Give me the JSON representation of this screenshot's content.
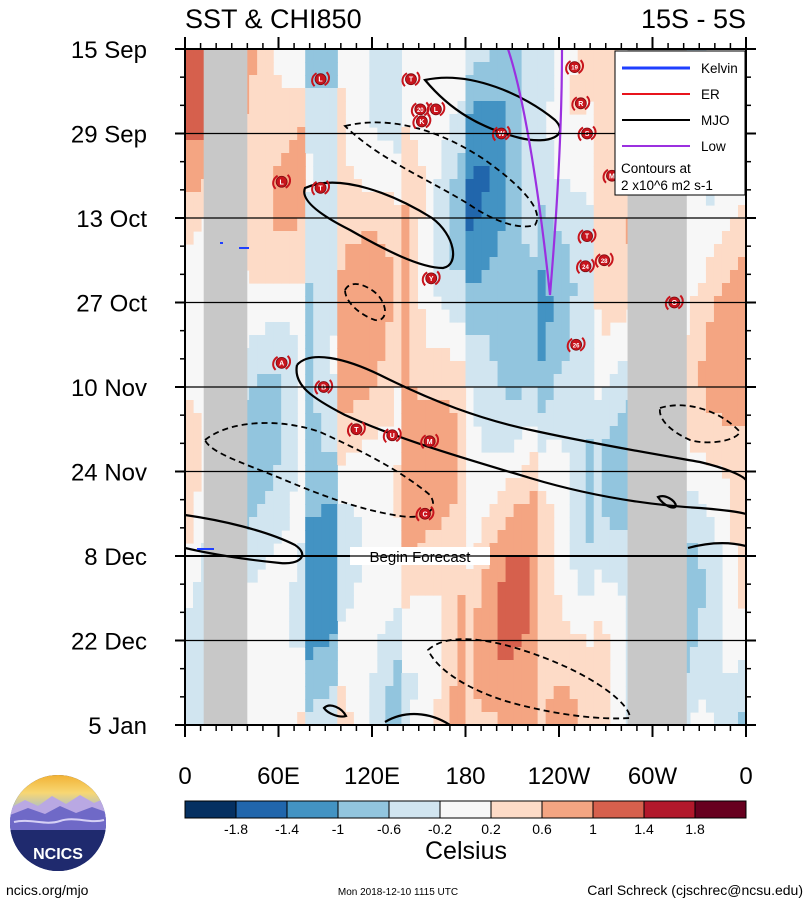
{
  "chart_data": {
    "type": "heatmap",
    "title_left": "SST & CHI850",
    "title_right": "15S - 5S",
    "y_tick_labels": [
      "15 Sep",
      "29 Sep",
      "13 Oct",
      "27 Oct",
      "10 Nov",
      "24 Nov",
      "8 Dec",
      "22 Dec",
      "5 Jan"
    ],
    "x_tick_labels": [
      "0",
      "60E",
      "120E",
      "180",
      "120W",
      "60W",
      "0"
    ],
    "xlim": [
      0,
      360
    ],
    "ylim": [
      "2018-09-15",
      "2019-01-05"
    ],
    "forecast_label": "Begin Forecast",
    "forecast_start": "2018-12-08",
    "colorbar": {
      "label": "Celsius",
      "ticks": [
        "-1.8",
        "-1.4",
        "-1",
        "-0.6",
        "-0.2",
        "0.2",
        "0.6",
        "1",
        "1.4",
        "1.8"
      ],
      "colors": [
        "#053061",
        "#2166ac",
        "#4393c3",
        "#92c5de",
        "#d1e5f0",
        "#f7f7f7",
        "#fddbc7",
        "#f4a582",
        "#d6604d",
        "#b2182b",
        "#67001f"
      ]
    },
    "legend": {
      "position": "top-right",
      "entries": [
        {
          "name": "Kelvin",
          "color": "#1f3fff"
        },
        {
          "name": "ER",
          "color": "#e8141c"
        },
        {
          "name": "MJO",
          "color": "#000000"
        },
        {
          "name": "Low",
          "color": "#9b30e0"
        }
      ],
      "note_line1": "Contours at",
      "note_line2": "2 x10^6 m2 s-1"
    },
    "land_masks_longitude": [
      [
        12,
        40
      ],
      [
        284,
        322
      ]
    ],
    "storm_markers": [
      {
        "label": "L",
        "lon": 87,
        "date": "2018-09-20"
      },
      {
        "label": "T",
        "lon": 145,
        "date": "2018-09-20"
      },
      {
        "label": "19",
        "lon": 250,
        "date": "2018-09-18"
      },
      {
        "label": "20",
        "lon": 151,
        "date": "2018-09-25"
      },
      {
        "label": "L",
        "lon": 161,
        "date": "2018-09-25"
      },
      {
        "label": "K",
        "lon": 152,
        "date": "2018-09-27"
      },
      {
        "label": "R",
        "lon": 254,
        "date": "2018-09-24"
      },
      {
        "label": "S",
        "lon": 258,
        "date": "2018-09-29"
      },
      {
        "label": "W",
        "lon": 203,
        "date": "2018-09-29"
      },
      {
        "label": "M",
        "lon": 274,
        "date": "2018-10-06"
      },
      {
        "label": "L",
        "lon": 62,
        "date": "2018-10-07"
      },
      {
        "label": "T",
        "lon": 87,
        "date": "2018-10-08"
      },
      {
        "label": "T",
        "lon": 258,
        "date": "2018-10-16"
      },
      {
        "label": "24",
        "lon": 257,
        "date": "2018-10-21"
      },
      {
        "label": "28",
        "lon": 269,
        "date": "2018-10-20"
      },
      {
        "label": "Y",
        "lon": 158,
        "date": "2018-10-23"
      },
      {
        "label": "O",
        "lon": 314,
        "date": "2018-10-27"
      },
      {
        "label": "26",
        "lon": 251,
        "date": "2018-11-03"
      },
      {
        "label": "A",
        "lon": 62,
        "date": "2018-11-06"
      },
      {
        "label": "B",
        "lon": 89,
        "date": "2018-11-10"
      },
      {
        "label": "T",
        "lon": 110,
        "date": "2018-11-17"
      },
      {
        "label": "U",
        "lon": 133,
        "date": "2018-11-18"
      },
      {
        "label": "M",
        "lon": 157,
        "date": "2018-11-19"
      },
      {
        "label": "C",
        "lon": 154,
        "date": "2018-12-01"
      }
    ]
  },
  "footer": {
    "logo_text": "NCICS",
    "left": "ncics.org/mjo",
    "center": "Mon 2018-12-10 1115 UTC",
    "right": "Carl Schreck (cjschrec@ncsu.edu)"
  }
}
